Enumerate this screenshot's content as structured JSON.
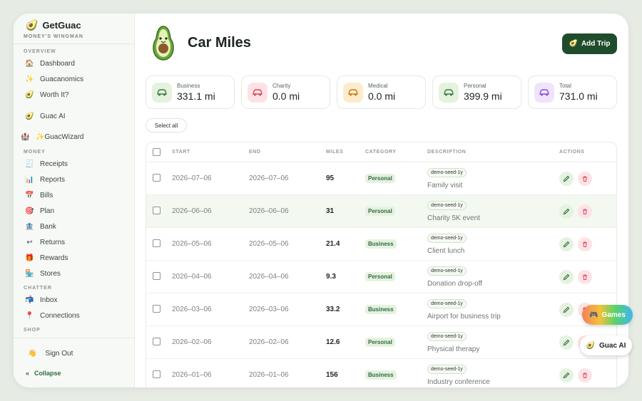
{
  "brand": {
    "name": "GetGuac",
    "tagline": "MONEY'S WINGMAN"
  },
  "sidebar": {
    "sections": [
      {
        "label": "OVERVIEW",
        "items": [
          {
            "label": "Dashboard",
            "icon": "house-icon"
          },
          {
            "label": "Guacanomics",
            "icon": "sparkles-icon"
          },
          {
            "label": "Worth It?",
            "icon": "avocado-icon"
          },
          {
            "label": "Guac AI",
            "icon": "avocado-chat-icon"
          },
          {
            "label": "✨GuacWizard",
            "icon": "wizard-icon"
          }
        ]
      },
      {
        "label": "MONEY",
        "items": [
          {
            "label": "Receipts",
            "icon": "receipt-icon"
          },
          {
            "label": "Reports",
            "icon": "chart-icon"
          },
          {
            "label": "Bills",
            "icon": "calendar-icon"
          },
          {
            "label": "Plan",
            "icon": "target-icon"
          },
          {
            "label": "Bank",
            "icon": "bank-icon"
          },
          {
            "label": "Returns",
            "icon": "return-icon"
          },
          {
            "label": "Rewards",
            "icon": "gift-icon"
          },
          {
            "label": "Stores",
            "icon": "store-icon"
          }
        ]
      },
      {
        "label": "CHATTER",
        "items": [
          {
            "label": "Inbox",
            "icon": "mailbox-icon"
          },
          {
            "label": "Connections",
            "icon": "pin-icon"
          }
        ]
      },
      {
        "label": "SHOP",
        "items": []
      }
    ],
    "sign_out": "Sign Out",
    "collapse": "Collapse"
  },
  "header": {
    "title": "Car Miles",
    "add_trip": "Add Trip"
  },
  "stats": [
    {
      "label": "Business",
      "value": "331.1 mi",
      "color": "#e4f2de",
      "icon_color": "#3d7a48"
    },
    {
      "label": "Charity",
      "value": "0.0 mi",
      "color": "#fde2e5",
      "icon_color": "#d8485a"
    },
    {
      "label": "Medical",
      "value": "0.0 mi",
      "color": "#fdeccb",
      "icon_color": "#c47b15"
    },
    {
      "label": "Personal",
      "value": "399.9 mi",
      "color": "#e4f2de",
      "icon_color": "#3d7a48"
    },
    {
      "label": "Total",
      "value": "731.0 mi",
      "color": "#efe4fb",
      "icon_color": "#8a4fd6"
    }
  ],
  "select_all": "Select all",
  "table": {
    "columns": [
      "START",
      "END",
      "MILES",
      "CATEGORY",
      "DESCRIPTION",
      "ACTIONS"
    ],
    "rows": [
      {
        "start": "2026–07–06",
        "end": "2026–07–06",
        "miles": "95",
        "category": "Personal",
        "tag": "demo-seed-1y",
        "description": "Family visit"
      },
      {
        "start": "2026–06–06",
        "end": "2026–06–06",
        "miles": "31",
        "category": "Personal",
        "tag": "demo-seed-1y",
        "description": "Charity 5K event"
      },
      {
        "start": "2026–05–06",
        "end": "2026–05–06",
        "miles": "21.4",
        "category": "Business",
        "tag": "demo-seed-1y",
        "description": "Client lunch"
      },
      {
        "start": "2026–04–06",
        "end": "2026–04–06",
        "miles": "9.3",
        "category": "Personal",
        "tag": "demo-seed-1y",
        "description": "Donation drop-off"
      },
      {
        "start": "2026–03–06",
        "end": "2026–03–06",
        "miles": "33.2",
        "category": "Business",
        "tag": "demo-seed-1y",
        "description": "Airport for business trip"
      },
      {
        "start": "2026–02–06",
        "end": "2026–02–06",
        "miles": "12.6",
        "category": "Personal",
        "tag": "demo-seed-1y",
        "description": "Physical therapy"
      },
      {
        "start": "2026–01–06",
        "end": "2026–01–06",
        "miles": "156",
        "category": "Business",
        "tag": "demo-seed-1y",
        "description": "Industry conference"
      }
    ]
  },
  "floating": {
    "games": "Games",
    "guac_ai": "Guac AI"
  }
}
